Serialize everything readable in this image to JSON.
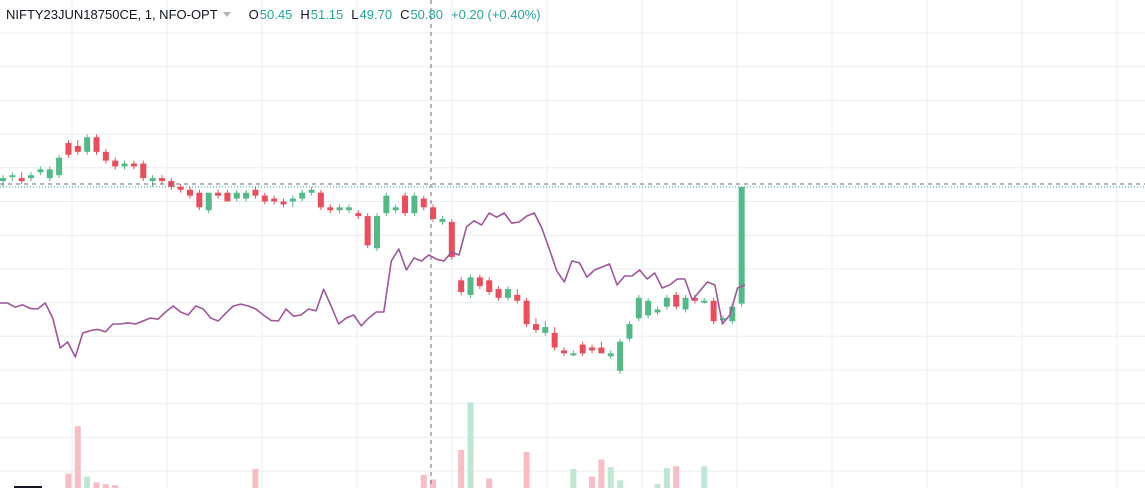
{
  "legend": {
    "symbol": "NIFTY23JUN18750CE, 1, NFO-OPT",
    "o_label": "O",
    "o_value": "50.45",
    "h_label": "H",
    "h_value": "51.15",
    "l_label": "L",
    "l_value": "49.70",
    "c_label": "C",
    "c_value": "50.80",
    "change": "+0.20 (+0.40%)"
  },
  "colors": {
    "up": "#53b987",
    "down": "#eb4d5c",
    "up_volume": "#bfe6d3",
    "down_volume": "#f7bcc4",
    "line": "#a0569b",
    "grid": "#e9eef3",
    "crosshair": "#6a6d78",
    "price_line": "#26a69a"
  },
  "chart_data": {
    "type": "candlestick",
    "title": "",
    "xlabel": "",
    "ylabel": "",
    "grid": true,
    "y_range": [
      46.5,
      54.0
    ],
    "candles": [
      [
        50.9,
        51.0,
        50.8,
        50.95
      ],
      [
        51.0,
        51.05,
        50.9,
        51.0
      ],
      [
        50.95,
        51.05,
        50.85,
        50.9
      ],
      [
        50.95,
        51.05,
        50.9,
        51.0
      ],
      [
        51.05,
        51.15,
        51.0,
        51.1
      ],
      [
        50.95,
        51.15,
        50.9,
        51.1
      ],
      [
        51.0,
        51.35,
        50.95,
        51.3
      ],
      [
        51.55,
        51.6,
        51.3,
        51.35
      ],
      [
        51.5,
        51.6,
        51.35,
        51.4
      ],
      [
        51.4,
        51.7,
        51.35,
        51.65
      ],
      [
        51.65,
        51.7,
        51.35,
        51.4
      ],
      [
        51.4,
        51.45,
        51.2,
        51.25
      ],
      [
        51.25,
        51.3,
        51.1,
        51.15
      ],
      [
        51.15,
        51.25,
        51.1,
        51.2
      ],
      [
        51.2,
        51.25,
        51.1,
        51.15
      ],
      [
        51.2,
        51.25,
        50.9,
        50.95
      ],
      [
        50.9,
        51.0,
        50.8,
        50.95
      ],
      [
        50.95,
        51.0,
        50.85,
        50.9
      ],
      [
        50.9,
        50.95,
        50.75,
        50.8
      ],
      [
        50.8,
        50.85,
        50.7,
        50.75
      ],
      [
        50.75,
        50.8,
        50.6,
        50.65
      ],
      [
        50.7,
        50.75,
        50.4,
        50.45
      ],
      [
        50.4,
        50.7,
        50.35,
        50.7
      ],
      [
        50.7,
        50.75,
        50.6,
        50.65
      ],
      [
        50.7,
        50.75,
        50.55,
        50.55
      ],
      [
        50.6,
        50.75,
        50.55,
        50.7
      ],
      [
        50.6,
        50.75,
        50.55,
        50.7
      ],
      [
        50.75,
        50.8,
        50.6,
        50.65
      ],
      [
        50.65,
        50.7,
        50.5,
        50.55
      ],
      [
        50.6,
        50.65,
        50.5,
        50.55
      ],
      [
        50.55,
        50.6,
        50.45,
        50.5
      ],
      [
        50.55,
        50.65,
        50.45,
        50.6
      ],
      [
        50.6,
        50.75,
        50.55,
        50.7
      ],
      [
        50.7,
        50.8,
        50.65,
        50.75
      ],
      [
        50.7,
        50.75,
        50.4,
        50.45
      ],
      [
        50.45,
        50.5,
        50.35,
        50.4
      ],
      [
        50.4,
        50.5,
        50.35,
        50.45
      ],
      [
        50.4,
        50.5,
        50.35,
        50.45
      ],
      [
        50.35,
        50.4,
        50.25,
        50.3
      ],
      [
        50.3,
        50.35,
        49.75,
        49.8
      ],
      [
        49.75,
        50.35,
        49.7,
        50.3
      ],
      [
        50.35,
        50.7,
        50.3,
        50.65
      ],
      [
        50.4,
        50.5,
        50.35,
        50.45
      ],
      [
        50.65,
        50.7,
        50.3,
        50.35
      ],
      [
        50.35,
        50.7,
        50.3,
        50.65
      ],
      [
        50.6,
        50.65,
        50.4,
        50.45
      ],
      [
        50.45,
        50.5,
        50.2,
        50.25
      ],
      [
        50.2,
        50.3,
        50.15,
        50.25
      ],
      [
        50.2,
        50.25,
        49.55,
        49.6
      ],
      [
        49.2,
        49.25,
        48.95,
        49.0
      ],
      [
        48.95,
        49.3,
        48.9,
        49.25
      ],
      [
        49.25,
        49.3,
        49.05,
        49.1
      ],
      [
        49.2,
        49.25,
        48.95,
        49.0
      ],
      [
        49.05,
        49.1,
        48.85,
        48.9
      ],
      [
        48.9,
        49.1,
        48.85,
        49.05
      ],
      [
        48.95,
        49.05,
        48.8,
        48.85
      ],
      [
        48.85,
        48.9,
        48.4,
        48.45
      ],
      [
        48.45,
        48.55,
        48.3,
        48.35
      ],
      [
        48.3,
        48.5,
        48.25,
        48.4
      ],
      [
        48.3,
        48.4,
        48.0,
        48.05
      ],
      [
        48.0,
        48.05,
        47.9,
        47.95
      ],
      [
        47.95,
        48.0,
        47.9,
        47.95
      ],
      [
        48.1,
        48.15,
        47.9,
        47.95
      ],
      [
        48.05,
        48.1,
        47.95,
        48.0
      ],
      [
        48.05,
        48.15,
        47.95,
        47.95
      ],
      [
        47.9,
        48.0,
        47.85,
        47.95
      ],
      [
        47.65,
        48.2,
        47.6,
        48.15
      ],
      [
        48.2,
        48.5,
        48.15,
        48.45
      ],
      [
        48.55,
        48.95,
        48.5,
        48.9
      ],
      [
        48.6,
        48.9,
        48.55,
        48.85
      ],
      [
        48.65,
        48.75,
        48.6,
        48.7
      ],
      [
        48.75,
        48.95,
        48.7,
        48.9
      ],
      [
        48.95,
        49.0,
        48.7,
        48.75
      ],
      [
        48.7,
        48.95,
        48.65,
        48.9
      ],
      [
        48.9,
        48.95,
        48.8,
        48.85
      ],
      [
        48.85,
        48.9,
        48.8,
        48.85
      ],
      [
        48.85,
        48.9,
        48.45,
        48.5
      ],
      [
        48.55,
        48.6,
        48.5,
        48.55
      ],
      [
        48.5,
        48.8,
        48.45,
        48.75
      ],
      [
        48.8,
        50.8,
        48.75,
        50.8
      ]
    ],
    "volume": [
      0,
      0,
      0,
      0,
      0,
      0,
      0,
      1.5,
      6.5,
      1.2,
      0.6,
      0.4,
      0.3,
      0,
      0,
      0,
      0,
      0,
      0,
      0,
      0,
      0,
      0,
      0,
      0,
      0,
      0,
      2.0,
      0,
      0,
      0,
      0,
      0,
      0,
      0,
      0,
      0,
      0,
      0,
      0,
      0,
      0,
      0,
      0,
      0,
      1.4,
      0.9,
      0,
      0,
      4.0,
      9.0,
      0,
      1.0,
      0,
      0,
      0,
      3.8,
      0,
      0,
      0,
      0,
      2.0,
      0,
      1.2,
      3.0,
      2.2,
      0.8,
      0,
      0,
      0,
      0.4,
      2.1,
      2.3,
      0,
      0,
      2.3,
      0,
      0,
      0,
      0
    ],
    "line_series": [
      0.45,
      0.45,
      0.38,
      0.42,
      0.36,
      0.35,
      0.45,
      0.2,
      -0.3,
      -0.2,
      -0.45,
      -0.05,
      -0.01,
      0.01,
      -0.03,
      0.1,
      0.1,
      0.12,
      0.1,
      0.15,
      0.2,
      0.18,
      0.3,
      0.4,
      0.3,
      0.25,
      0.4,
      0.35,
      0.2,
      0.15,
      0.28,
      0.4,
      0.43,
      0.4,
      0.35,
      0.25,
      0.16,
      0.15,
      0.35,
      0.23,
      0.25,
      0.35,
      0.32,
      0.68,
      0.4,
      0.1,
      0.2,
      0.25,
      0.07,
      0.2,
      0.3,
      0.3,
      1.15,
      1.35,
      1.0,
      1.2,
      1.15,
      1.25,
      1.18,
      1.15,
      1.3,
      1.25,
      1.72,
      1.82,
      1.75,
      1.95,
      1.88,
      1.95,
      1.78,
      1.8,
      1.9,
      1.95,
      1.7,
      1.35,
      0.98,
      0.8,
      1.15,
      1.12,
      0.88,
      1.0,
      1.05,
      1.1,
      0.75,
      0.9,
      0.9,
      1.0,
      0.85,
      0.95,
      0.7,
      0.75,
      0.85,
      0.85,
      0.5,
      0.65,
      0.8,
      0.75,
      0.1,
      0.25,
      0.7,
      0.75
    ]
  }
}
